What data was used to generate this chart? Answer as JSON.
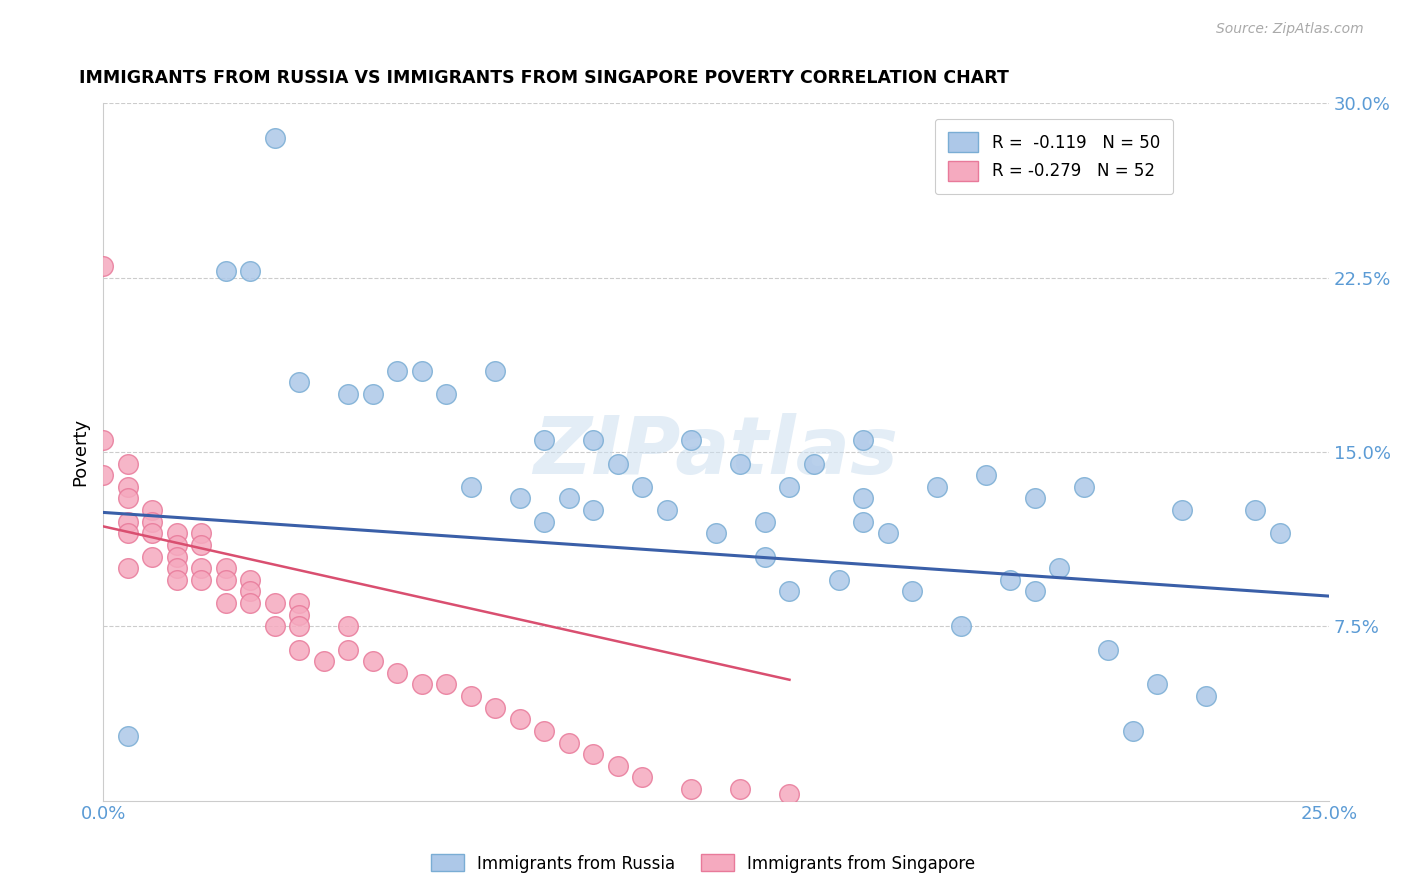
{
  "title": "IMMIGRANTS FROM RUSSIA VS IMMIGRANTS FROM SINGAPORE POVERTY CORRELATION CHART",
  "source": "Source: ZipAtlas.com",
  "ylabel": "Poverty",
  "xlim": [
    0.0,
    0.25
  ],
  "ylim": [
    0.0,
    0.3
  ],
  "ytick_labels_right": [
    "30.0%",
    "22.5%",
    "15.0%",
    "7.5%"
  ],
  "yticks_right": [
    0.3,
    0.225,
    0.15,
    0.075
  ],
  "russia_color": "#adc8e8",
  "russia_edge_color": "#7aadd4",
  "singapore_color": "#f5aabf",
  "singapore_edge_color": "#e87a9a",
  "trendline_russia_color": "#3a5fa8",
  "trendline_singapore_color": "#d94f70",
  "legend_R_russia": "R =  -0.119",
  "legend_N_russia": "N = 50",
  "legend_R_singapore": "R = -0.279",
  "legend_N_singapore": "N = 52",
  "watermark": "ZIPatlas",
  "russia_x": [
    0.005,
    0.025,
    0.03,
    0.035,
    0.04,
    0.05,
    0.055,
    0.06,
    0.065,
    0.07,
    0.075,
    0.08,
    0.085,
    0.09,
    0.09,
    0.095,
    0.1,
    0.1,
    0.105,
    0.11,
    0.115,
    0.12,
    0.125,
    0.13,
    0.135,
    0.135,
    0.14,
    0.14,
    0.145,
    0.15,
    0.155,
    0.155,
    0.155,
    0.16,
    0.165,
    0.17,
    0.175,
    0.18,
    0.185,
    0.19,
    0.19,
    0.195,
    0.2,
    0.205,
    0.21,
    0.215,
    0.22,
    0.225,
    0.235,
    0.24
  ],
  "russia_y": [
    0.028,
    0.228,
    0.228,
    0.285,
    0.18,
    0.175,
    0.175,
    0.185,
    0.185,
    0.175,
    0.135,
    0.185,
    0.13,
    0.155,
    0.12,
    0.13,
    0.125,
    0.155,
    0.145,
    0.135,
    0.125,
    0.155,
    0.115,
    0.145,
    0.105,
    0.12,
    0.135,
    0.09,
    0.145,
    0.095,
    0.155,
    0.13,
    0.12,
    0.115,
    0.09,
    0.135,
    0.075,
    0.14,
    0.095,
    0.09,
    0.13,
    0.1,
    0.135,
    0.065,
    0.03,
    0.05,
    0.125,
    0.045,
    0.125,
    0.115
  ],
  "singapore_x": [
    0.0,
    0.0,
    0.0,
    0.005,
    0.005,
    0.005,
    0.005,
    0.005,
    0.005,
    0.01,
    0.01,
    0.01,
    0.01,
    0.015,
    0.015,
    0.015,
    0.015,
    0.015,
    0.02,
    0.02,
    0.02,
    0.02,
    0.025,
    0.025,
    0.025,
    0.03,
    0.03,
    0.03,
    0.035,
    0.035,
    0.04,
    0.04,
    0.04,
    0.04,
    0.045,
    0.05,
    0.05,
    0.055,
    0.06,
    0.065,
    0.07,
    0.075,
    0.08,
    0.085,
    0.09,
    0.095,
    0.1,
    0.105,
    0.11,
    0.12,
    0.13,
    0.14
  ],
  "singapore_y": [
    0.23,
    0.155,
    0.14,
    0.145,
    0.135,
    0.13,
    0.12,
    0.115,
    0.1,
    0.125,
    0.12,
    0.115,
    0.105,
    0.115,
    0.11,
    0.105,
    0.1,
    0.095,
    0.115,
    0.11,
    0.1,
    0.095,
    0.1,
    0.095,
    0.085,
    0.095,
    0.09,
    0.085,
    0.085,
    0.075,
    0.085,
    0.08,
    0.075,
    0.065,
    0.06,
    0.075,
    0.065,
    0.06,
    0.055,
    0.05,
    0.05,
    0.045,
    0.04,
    0.035,
    0.03,
    0.025,
    0.02,
    0.015,
    0.01,
    0.005,
    0.005,
    0.003
  ],
  "russia_trendline_x": [
    0.0,
    0.25
  ],
  "russia_trendline_y": [
    0.124,
    0.088
  ],
  "singapore_trendline_x": [
    0.0,
    0.14
  ],
  "singapore_trendline_y": [
    0.118,
    0.052
  ]
}
